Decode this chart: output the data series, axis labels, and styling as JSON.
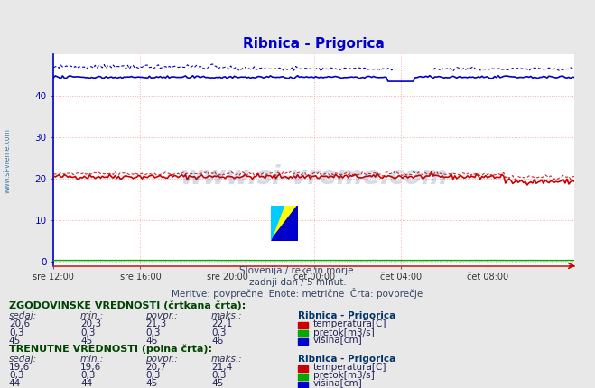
{
  "title": "Ribnica - Prigorica",
  "title_color": "#0000cc",
  "bg_color": "#e8e8e8",
  "plot_bg_color": "#ffffff",
  "subtitle_lines": [
    "Slovenija / reke in morje.",
    "zadnji dan / 5 minut.",
    "Meritve: povprečne  Enote: metrične  Črta: povprečje"
  ],
  "xlabel_ticks": [
    "sre 12:00",
    "sre 16:00",
    "sre 20:00",
    "čet 00:00",
    "čet 04:00",
    "čet 08:00"
  ],
  "ylabel_ticks": [
    0,
    10,
    20,
    30,
    40
  ],
  "ylim": [
    -1,
    50
  ],
  "xlim": [
    0,
    288
  ],
  "tick_positions": [
    0,
    48,
    96,
    144,
    192,
    240
  ],
  "watermark": "www.si-vreme.com",
  "watermark_color": "#1a3a7e",
  "watermark_alpha": 0.18,
  "grid_color": "#ffaaaa",
  "grid_alpha": 0.8,
  "vgrid_color": "#ffaaaa",
  "vgrid_alpha": 0.8,
  "temp_solid_color": "#cc0000",
  "temp_dashed_color": "#cc0000",
  "flow_solid_color": "#00aa00",
  "flow_dashed_color": "#00aa00",
  "height_solid_color": "#0000cc",
  "height_dashed_color": "#0000cc",
  "temp_solid_val": 20.5,
  "temp_dashed_val": 21.2,
  "flow_val": 0.3,
  "height_solid_val": 44.5,
  "height_dashed_val": 46.5,
  "legend_colors_rect": [
    "#cc0000",
    "#00aa00",
    "#0000cc"
  ],
  "legend_labels_hist": [
    "temperatura[C]",
    "pretok[m3/s]",
    "višina[cm]"
  ],
  "legend_labels_curr": [
    "temperatura[C]",
    "pretok[m3/s]",
    "višina[cm]"
  ],
  "hist_header": "ZGODOVINSKE VREDNOSTI (črtkana črta):",
  "curr_header": "TRENUTNE VREDNOSTI (polna črta):",
  "col_headers": [
    "sedaj:",
    "min.:",
    "povpr.:",
    "maks.:"
  ],
  "hist_data": [
    [
      "20,6",
      "20,3",
      "21,3",
      "22,1"
    ],
    [
      "0,3",
      "0,3",
      "0,3",
      "0,3"
    ],
    [
      "45",
      "45",
      "46",
      "46"
    ]
  ],
  "curr_data": [
    [
      "19,6",
      "19,6",
      "20,7",
      "21,4"
    ],
    [
      "0,3",
      "0,3",
      "0,3",
      "0,3"
    ],
    [
      "44",
      "44",
      "45",
      "45"
    ]
  ],
  "station_name": "Ribnica - Prigorica",
  "side_label": "www.si-vreme.com",
  "side_label_color": "#4477aa"
}
